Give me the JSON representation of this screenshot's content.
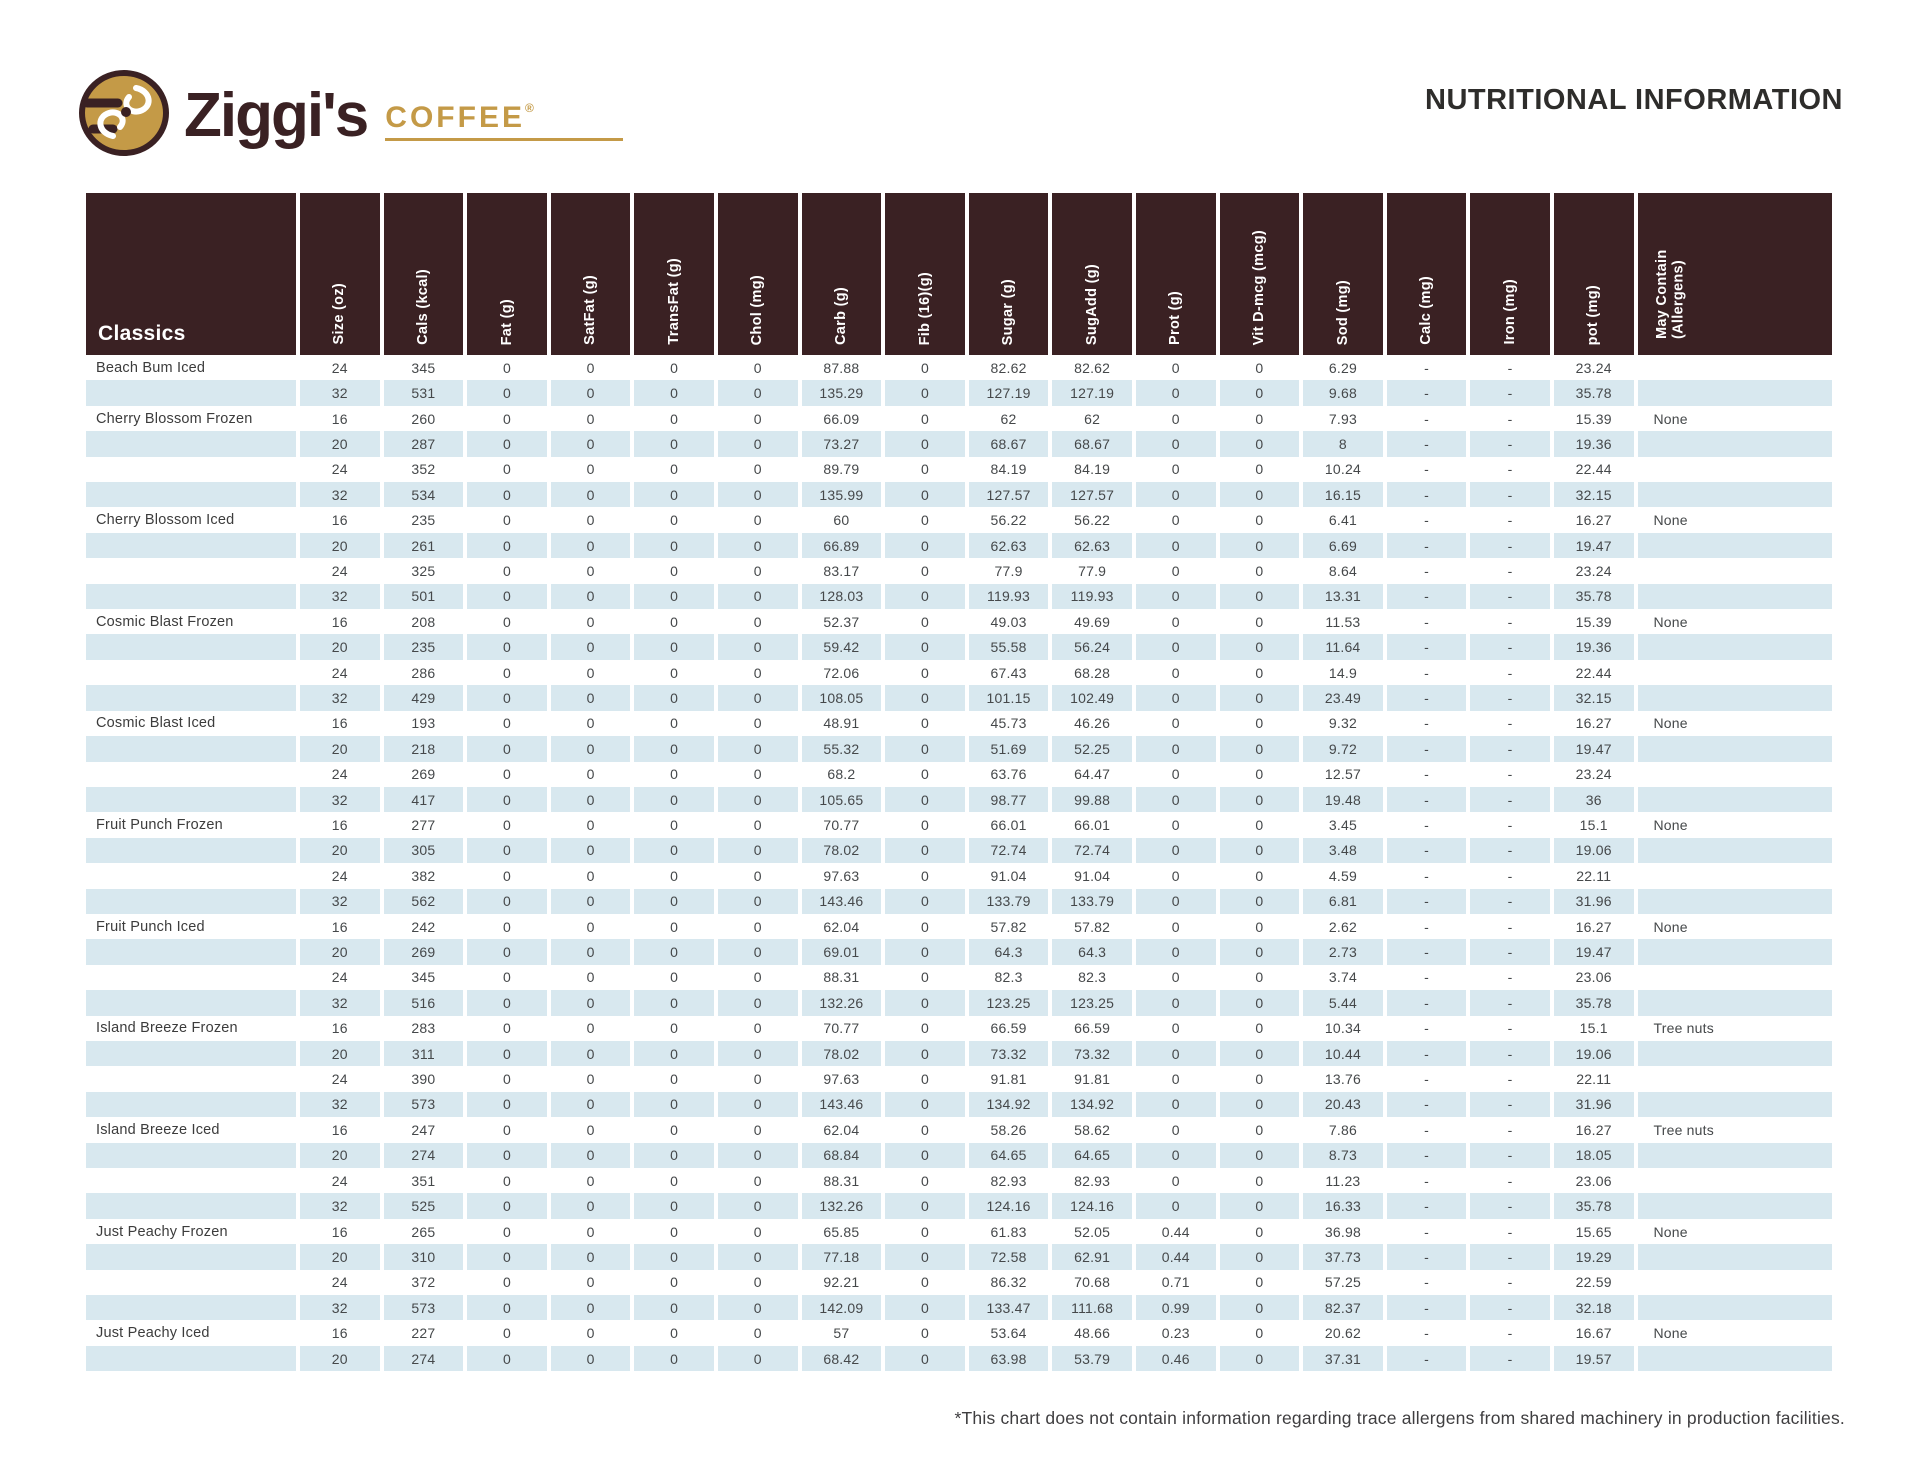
{
  "header": {
    "title": "NUTRITIONAL INFORMATION"
  },
  "logo": {
    "wordmark": "Ziggi's",
    "coffee": "COFFEE",
    "reg": "®"
  },
  "colors": {
    "header_brown": "#3a2123",
    "row_blue": "#d8e8ef",
    "gold": "#c49a47"
  },
  "table": {
    "first_col_label": "Classics",
    "columns": [
      "Size (oz)",
      "Cals (kcal)",
      "Fat (g)",
      "SatFat (g)",
      "TransFat (g)",
      "Chol (mg)",
      "Carb (g)",
      "Fib (16)(g)",
      "Sugar (g)",
      "SugAdd (g)",
      "Prot (g)",
      "Vit D-mcg (mcg)",
      "Sod (mg)",
      "Calc (mg)",
      "Iron (mg)",
      "pot (mg)",
      "May Contain (Allergens)"
    ],
    "groups": [
      {
        "name": "Beach Bum Iced",
        "rows": [
          [
            "24",
            "345",
            "0",
            "0",
            "0",
            "0",
            "87.88",
            "0",
            "82.62",
            "82.62",
            "0",
            "0",
            "6.29",
            "-",
            "-",
            "23.24",
            ""
          ],
          [
            "32",
            "531",
            "0",
            "0",
            "0",
            "0",
            "135.29",
            "0",
            "127.19",
            "127.19",
            "0",
            "0",
            "9.68",
            "-",
            "-",
            "35.78",
            ""
          ]
        ]
      },
      {
        "name": "Cherry Blossom Frozen",
        "rows": [
          [
            "16",
            "260",
            "0",
            "0",
            "0",
            "0",
            "66.09",
            "0",
            "62",
            "62",
            "0",
            "0",
            "7.93",
            "-",
            "-",
            "15.39",
            "None"
          ],
          [
            "20",
            "287",
            "0",
            "0",
            "0",
            "0",
            "73.27",
            "0",
            "68.67",
            "68.67",
            "0",
            "0",
            "8",
            "-",
            "-",
            "19.36",
            ""
          ],
          [
            "24",
            "352",
            "0",
            "0",
            "0",
            "0",
            "89.79",
            "0",
            "84.19",
            "84.19",
            "0",
            "0",
            "10.24",
            "-",
            "-",
            "22.44",
            ""
          ],
          [
            "32",
            "534",
            "0",
            "0",
            "0",
            "0",
            "135.99",
            "0",
            "127.57",
            "127.57",
            "0",
            "0",
            "16.15",
            "-",
            "-",
            "32.15",
            ""
          ]
        ]
      },
      {
        "name": "Cherry Blossom Iced",
        "rows": [
          [
            "16",
            "235",
            "0",
            "0",
            "0",
            "0",
            "60",
            "0",
            "56.22",
            "56.22",
            "0",
            "0",
            "6.41",
            "-",
            "-",
            "16.27",
            "None"
          ],
          [
            "20",
            "261",
            "0",
            "0",
            "0",
            "0",
            "66.89",
            "0",
            "62.63",
            "62.63",
            "0",
            "0",
            "6.69",
            "-",
            "-",
            "19.47",
            ""
          ],
          [
            "24",
            "325",
            "0",
            "0",
            "0",
            "0",
            "83.17",
            "0",
            "77.9",
            "77.9",
            "0",
            "0",
            "8.64",
            "-",
            "-",
            "23.24",
            ""
          ],
          [
            "32",
            "501",
            "0",
            "0",
            "0",
            "0",
            "128.03",
            "0",
            "119.93",
            "119.93",
            "0",
            "0",
            "13.31",
            "-",
            "-",
            "35.78",
            ""
          ]
        ]
      },
      {
        "name": "Cosmic Blast Frozen",
        "rows": [
          [
            "16",
            "208",
            "0",
            "0",
            "0",
            "0",
            "52.37",
            "0",
            "49.03",
            "49.69",
            "0",
            "0",
            "11.53",
            "-",
            "-",
            "15.39",
            "None"
          ],
          [
            "20",
            "235",
            "0",
            "0",
            "0",
            "0",
            "59.42",
            "0",
            "55.58",
            "56.24",
            "0",
            "0",
            "11.64",
            "-",
            "-",
            "19.36",
            ""
          ],
          [
            "24",
            "286",
            "0",
            "0",
            "0",
            "0",
            "72.06",
            "0",
            "67.43",
            "68.28",
            "0",
            "0",
            "14.9",
            "-",
            "-",
            "22.44",
            ""
          ],
          [
            "32",
            "429",
            "0",
            "0",
            "0",
            "0",
            "108.05",
            "0",
            "101.15",
            "102.49",
            "0",
            "0",
            "23.49",
            "-",
            "-",
            "32.15",
            ""
          ]
        ]
      },
      {
        "name": "Cosmic Blast Iced",
        "rows": [
          [
            "16",
            "193",
            "0",
            "0",
            "0",
            "0",
            "48.91",
            "0",
            "45.73",
            "46.26",
            "0",
            "0",
            "9.32",
            "-",
            "-",
            "16.27",
            "None"
          ],
          [
            "20",
            "218",
            "0",
            "0",
            "0",
            "0",
            "55.32",
            "0",
            "51.69",
            "52.25",
            "0",
            "0",
            "9.72",
            "-",
            "-",
            "19.47",
            ""
          ],
          [
            "24",
            "269",
            "0",
            "0",
            "0",
            "0",
            "68.2",
            "0",
            "63.76",
            "64.47",
            "0",
            "0",
            "12.57",
            "-",
            "-",
            "23.24",
            ""
          ],
          [
            "32",
            "417",
            "0",
            "0",
            "0",
            "0",
            "105.65",
            "0",
            "98.77",
            "99.88",
            "0",
            "0",
            "19.48",
            "-",
            "-",
            "36",
            ""
          ]
        ]
      },
      {
        "name": "Fruit Punch Frozen",
        "rows": [
          [
            "16",
            "277",
            "0",
            "0",
            "0",
            "0",
            "70.77",
            "0",
            "66.01",
            "66.01",
            "0",
            "0",
            "3.45",
            "-",
            "-",
            "15.1",
            "None"
          ],
          [
            "20",
            "305",
            "0",
            "0",
            "0",
            "0",
            "78.02",
            "0",
            "72.74",
            "72.74",
            "0",
            "0",
            "3.48",
            "-",
            "-",
            "19.06",
            ""
          ],
          [
            "24",
            "382",
            "0",
            "0",
            "0",
            "0",
            "97.63",
            "0",
            "91.04",
            "91.04",
            "0",
            "0",
            "4.59",
            "-",
            "-",
            "22.11",
            ""
          ],
          [
            "32",
            "562",
            "0",
            "0",
            "0",
            "0",
            "143.46",
            "0",
            "133.79",
            "133.79",
            "0",
            "0",
            "6.81",
            "-",
            "-",
            "31.96",
            ""
          ]
        ]
      },
      {
        "name": "Fruit Punch Iced",
        "rows": [
          [
            "16",
            "242",
            "0",
            "0",
            "0",
            "0",
            "62.04",
            "0",
            "57.82",
            "57.82",
            "0",
            "0",
            "2.62",
            "-",
            "-",
            "16.27",
            "None"
          ],
          [
            "20",
            "269",
            "0",
            "0",
            "0",
            "0",
            "69.01",
            "0",
            "64.3",
            "64.3",
            "0",
            "0",
            "2.73",
            "-",
            "-",
            "19.47",
            ""
          ],
          [
            "24",
            "345",
            "0",
            "0",
            "0",
            "0",
            "88.31",
            "0",
            "82.3",
            "82.3",
            "0",
            "0",
            "3.74",
            "-",
            "-",
            "23.06",
            ""
          ],
          [
            "32",
            "516",
            "0",
            "0",
            "0",
            "0",
            "132.26",
            "0",
            "123.25",
            "123.25",
            "0",
            "0",
            "5.44",
            "-",
            "-",
            "35.78",
            ""
          ]
        ]
      },
      {
        "name": "Island Breeze Frozen",
        "rows": [
          [
            "16",
            "283",
            "0",
            "0",
            "0",
            "0",
            "70.77",
            "0",
            "66.59",
            "66.59",
            "0",
            "0",
            "10.34",
            "-",
            "-",
            "15.1",
            "Tree nuts"
          ],
          [
            "20",
            "311",
            "0",
            "0",
            "0",
            "0",
            "78.02",
            "0",
            "73.32",
            "73.32",
            "0",
            "0",
            "10.44",
            "-",
            "-",
            "19.06",
            ""
          ],
          [
            "24",
            "390",
            "0",
            "0",
            "0",
            "0",
            "97.63",
            "0",
            "91.81",
            "91.81",
            "0",
            "0",
            "13.76",
            "-",
            "-",
            "22.11",
            ""
          ],
          [
            "32",
            "573",
            "0",
            "0",
            "0",
            "0",
            "143.46",
            "0",
            "134.92",
            "134.92",
            "0",
            "0",
            "20.43",
            "-",
            "-",
            "31.96",
            ""
          ]
        ]
      },
      {
        "name": "Island Breeze Iced",
        "rows": [
          [
            "16",
            "247",
            "0",
            "0",
            "0",
            "0",
            "62.04",
            "0",
            "58.26",
            "58.62",
            "0",
            "0",
            "7.86",
            "-",
            "-",
            "16.27",
            "Tree nuts"
          ],
          [
            "20",
            "274",
            "0",
            "0",
            "0",
            "0",
            "68.84",
            "0",
            "64.65",
            "64.65",
            "0",
            "0",
            "8.73",
            "-",
            "-",
            "18.05",
            ""
          ],
          [
            "24",
            "351",
            "0",
            "0",
            "0",
            "0",
            "88.31",
            "0",
            "82.93",
            "82.93",
            "0",
            "0",
            "11.23",
            "-",
            "-",
            "23.06",
            ""
          ],
          [
            "32",
            "525",
            "0",
            "0",
            "0",
            "0",
            "132.26",
            "0",
            "124.16",
            "124.16",
            "0",
            "0",
            "16.33",
            "-",
            "-",
            "35.78",
            ""
          ]
        ]
      },
      {
        "name": "Just Peachy Frozen",
        "rows": [
          [
            "16",
            "265",
            "0",
            "0",
            "0",
            "0",
            "65.85",
            "0",
            "61.83",
            "52.05",
            "0.44",
            "0",
            "36.98",
            "-",
            "-",
            "15.65",
            "None"
          ],
          [
            "20",
            "310",
            "0",
            "0",
            "0",
            "0",
            "77.18",
            "0",
            "72.58",
            "62.91",
            "0.44",
            "0",
            "37.73",
            "-",
            "-",
            "19.29",
            ""
          ],
          [
            "24",
            "372",
            "0",
            "0",
            "0",
            "0",
            "92.21",
            "0",
            "86.32",
            "70.68",
            "0.71",
            "0",
            "57.25",
            "-",
            "-",
            "22.59",
            ""
          ],
          [
            "32",
            "573",
            "0",
            "0",
            "0",
            "0",
            "142.09",
            "0",
            "133.47",
            "111.68",
            "0.99",
            "0",
            "82.37",
            "-",
            "-",
            "32.18",
            ""
          ]
        ]
      },
      {
        "name": "Just Peachy Iced",
        "rows": [
          [
            "16",
            "227",
            "0",
            "0",
            "0",
            "0",
            "57",
            "0",
            "53.64",
            "48.66",
            "0.23",
            "0",
            "20.62",
            "-",
            "-",
            "16.67",
            "None"
          ],
          [
            "20",
            "274",
            "0",
            "0",
            "0",
            "0",
            "68.42",
            "0",
            "63.98",
            "53.79",
            "0.46",
            "0",
            "37.31",
            "-",
            "-",
            "19.57",
            ""
          ]
        ]
      }
    ]
  },
  "footnote": "*This chart does not contain information regarding trace allergens from shared machinery in production facilities."
}
